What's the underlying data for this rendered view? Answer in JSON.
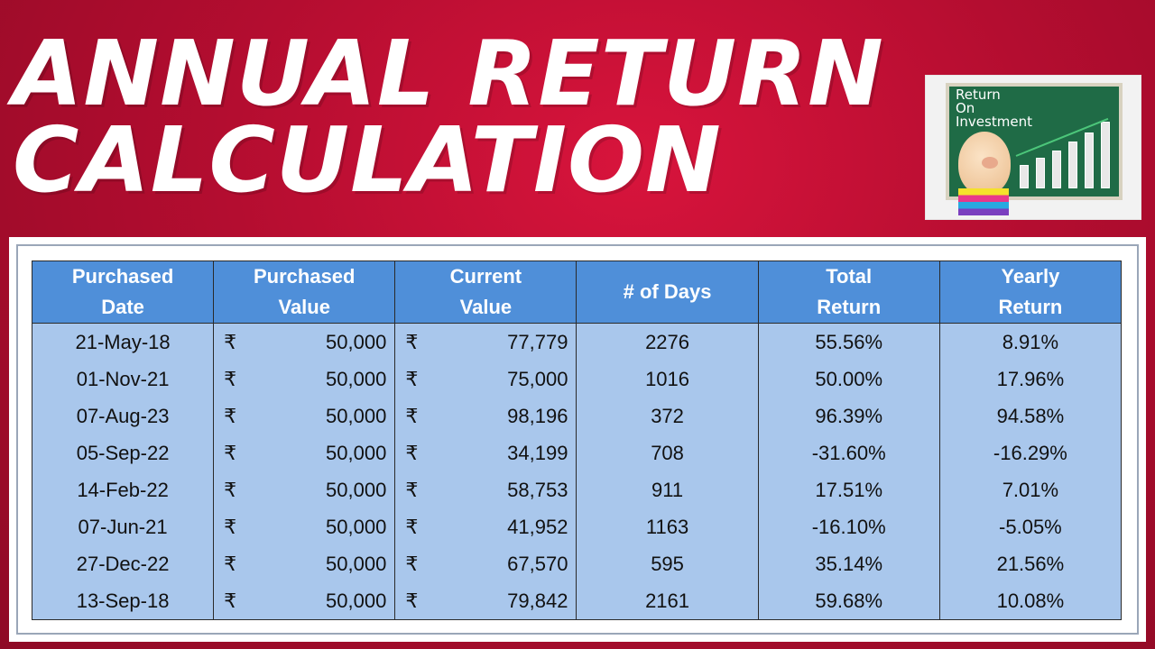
{
  "header": {
    "title_line1": "ANNUAL RETURN",
    "title_line2": "CALCULATION"
  },
  "thumbnail": {
    "board_lines": [
      "Return",
      "On",
      "Investment"
    ],
    "icon": "piggy-bank-bar-chart-icon"
  },
  "table": {
    "currency_symbol": "₹",
    "columns": [
      {
        "line1": "Purchased",
        "line2": "Date"
      },
      {
        "line1": "Purchased",
        "line2": "Value"
      },
      {
        "line1": "Current",
        "line2": "Value"
      },
      {
        "line1": "# of Days",
        "line2": ""
      },
      {
        "line1": "Total",
        "line2": "Return"
      },
      {
        "line1": "Yearly",
        "line2": "Return"
      }
    ],
    "rows": [
      {
        "date": "21-May-18",
        "purchased": "50,000",
        "current": "77,779",
        "days": "2276",
        "total": "55.56%",
        "yearly": "8.91%"
      },
      {
        "date": "01-Nov-21",
        "purchased": "50,000",
        "current": "75,000",
        "days": "1016",
        "total": "50.00%",
        "yearly": "17.96%"
      },
      {
        "date": "07-Aug-23",
        "purchased": "50,000",
        "current": "98,196",
        "days": "372",
        "total": "96.39%",
        "yearly": "94.58%"
      },
      {
        "date": "05-Sep-22",
        "purchased": "50,000",
        "current": "34,199",
        "days": "708",
        "total": "-31.60%",
        "yearly": "-16.29%"
      },
      {
        "date": "14-Feb-22",
        "purchased": "50,000",
        "current": "58,753",
        "days": "911",
        "total": "17.51%",
        "yearly": "7.01%"
      },
      {
        "date": "07-Jun-21",
        "purchased": "50,000",
        "current": "41,952",
        "days": "1163",
        "total": "-16.10%",
        "yearly": "-5.05%"
      },
      {
        "date": "27-Dec-22",
        "purchased": "50,000",
        "current": "67,570",
        "days": "595",
        "total": "35.14%",
        "yearly": "21.56%"
      },
      {
        "date": "13-Sep-18",
        "purchased": "50,000",
        "current": "79,842",
        "days": "2161",
        "total": "59.68%",
        "yearly": "10.08%"
      }
    ]
  },
  "colors": {
    "background": "#b40d30",
    "header_fill": "#4f8fd9",
    "row_fill": "#a9c7ec"
  }
}
